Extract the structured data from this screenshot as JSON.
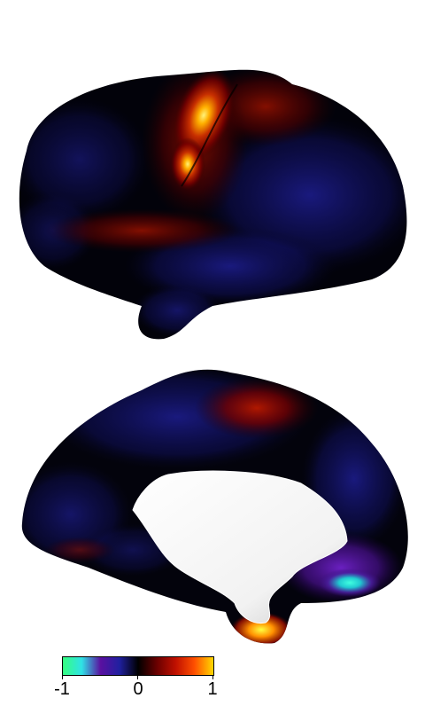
{
  "colormap": {
    "ticks": [
      "-1",
      "0",
      "1"
    ],
    "stops": [
      "#35ff7f",
      "#2fe2e6",
      "#5a10a0",
      "#2020a0",
      "#000000",
      "#6a0000",
      "#c01000",
      "#ff5000",
      "#ffd800"
    ]
  },
  "views": {
    "lateral": {
      "name": "lateral-hemisphere-view"
    },
    "medial": {
      "name": "medial-hemisphere-view"
    }
  }
}
